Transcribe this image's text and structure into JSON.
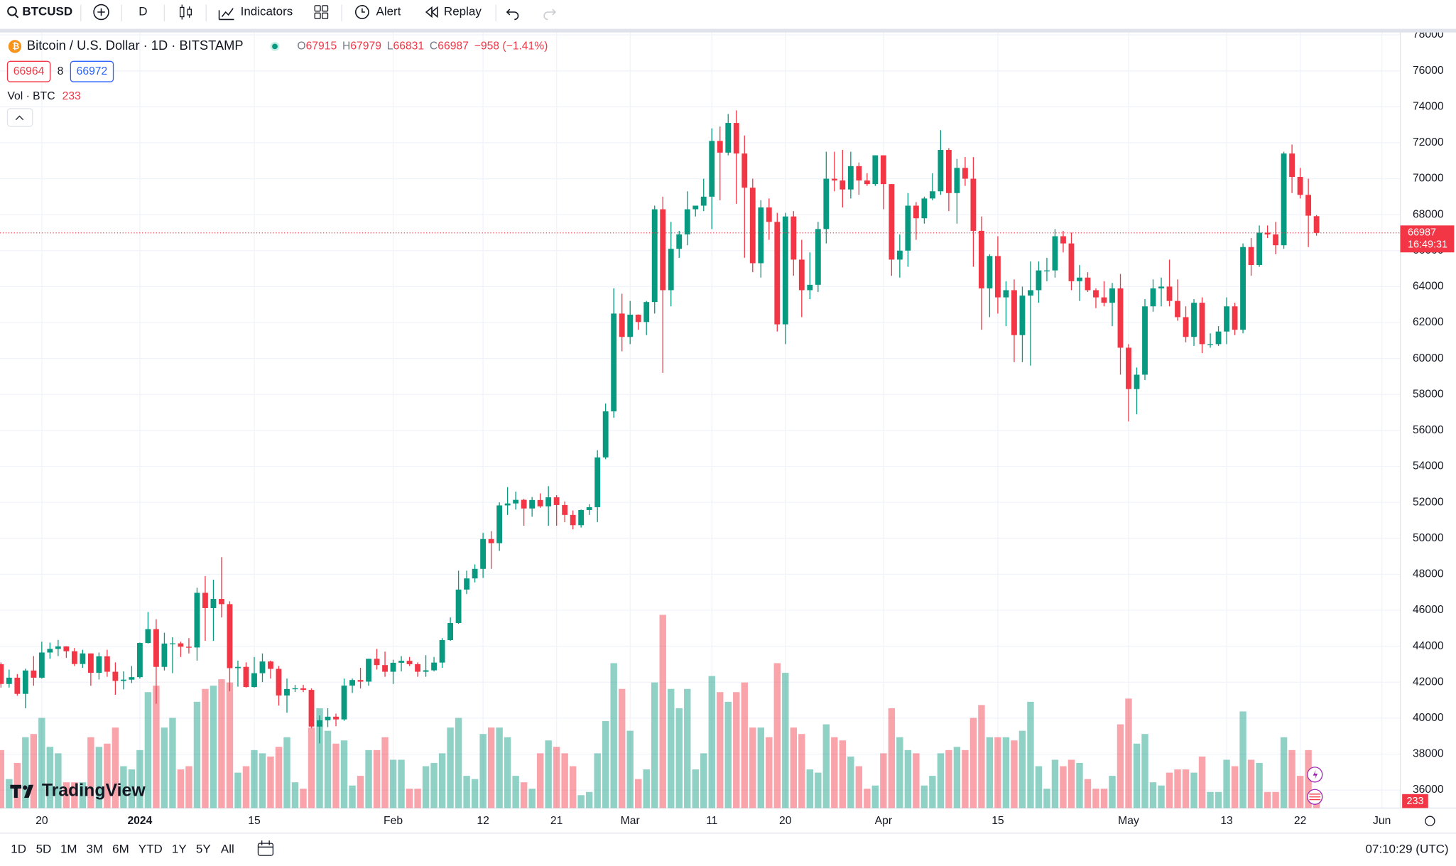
{
  "toolbar": {
    "symbol": "BTCUSD",
    "interval": "D",
    "indicators": "Indicators",
    "alert": "Alert",
    "replay": "Replay"
  },
  "legend": {
    "title": "Bitcoin / U.S. Dollar · 1D · BITSTAMP",
    "o": "O",
    "h": "H",
    "l": "L",
    "c": "C",
    "change": "−958 (−1.41%)",
    "bid": 66964,
    "spread": 8,
    "ask": 66972,
    "volume_title": "Vol · BTC"
  },
  "logo": "TradingView",
  "footer": {
    "ranges": [
      "1D",
      "5D",
      "1M",
      "3M",
      "6M",
      "YTD",
      "1Y",
      "5Y",
      "All"
    ],
    "clock": "07:10:29 (UTC)"
  },
  "chart_data": {
    "type": "candlestick",
    "up_color": "#089981",
    "down_color": "#f23645",
    "grid": true,
    "countdown": "16:49:31",
    "ylim": [
      35000,
      78130
    ],
    "yticks": [
      36000,
      38000,
      40000,
      42000,
      44000,
      46000,
      48000,
      50000,
      52000,
      54000,
      56000,
      58000,
      60000,
      62000,
      64000,
      66000,
      68000,
      70000,
      72000,
      74000,
      76000,
      78000
    ],
    "xticks": [
      {
        "value": "2023-12-20",
        "label": "20"
      },
      {
        "value": "2024-01-01",
        "label": "2024"
      },
      {
        "value": "2024-01-15",
        "label": "15"
      },
      {
        "value": "2024-02-01",
        "label": "Feb"
      },
      {
        "value": "2024-02-12",
        "label": "12"
      },
      {
        "value": "2024-02-21",
        "label": "21"
      },
      {
        "value": "2024-03-01",
        "label": "Mar"
      },
      {
        "value": "2024-03-11",
        "label": "11"
      },
      {
        "value": "2024-03-20",
        "label": "20"
      },
      {
        "value": "2024-04-01",
        "label": "Apr"
      },
      {
        "value": "2024-04-15",
        "label": "15"
      },
      {
        "value": "2024-05-01",
        "label": "May"
      },
      {
        "value": "2024-05-13",
        "label": "13"
      },
      {
        "value": "2024-05-22",
        "label": "22"
      },
      {
        "value": "2024-06-01",
        "label": "Jun"
      }
    ],
    "x": [
      "2023-12-15",
      "2023-12-16",
      "2023-12-17",
      "2023-12-18",
      "2023-12-19",
      "2023-12-20",
      "2023-12-21",
      "2023-12-22",
      "2023-12-23",
      "2023-12-24",
      "2023-12-25",
      "2023-12-26",
      "2023-12-27",
      "2023-12-28",
      "2023-12-29",
      "2023-12-30",
      "2023-12-31",
      "2024-01-01",
      "2024-01-02",
      "2024-01-03",
      "2024-01-04",
      "2024-01-05",
      "2024-01-06",
      "2024-01-07",
      "2024-01-08",
      "2024-01-09",
      "2024-01-10",
      "2024-01-11",
      "2024-01-12",
      "2024-01-13",
      "2024-01-14",
      "2024-01-15",
      "2024-01-16",
      "2024-01-17",
      "2024-01-18",
      "2024-01-19",
      "2024-01-20",
      "2024-01-21",
      "2024-01-22",
      "2024-01-23",
      "2024-01-24",
      "2024-01-25",
      "2024-01-26",
      "2024-01-27",
      "2024-01-28",
      "2024-01-29",
      "2024-01-30",
      "2024-01-31",
      "2024-02-01",
      "2024-02-02",
      "2024-02-03",
      "2024-02-04",
      "2024-02-05",
      "2024-02-06",
      "2024-02-07",
      "2024-02-08",
      "2024-02-09",
      "2024-02-10",
      "2024-02-11",
      "2024-02-12",
      "2024-02-13",
      "2024-02-14",
      "2024-02-15",
      "2024-02-16",
      "2024-02-17",
      "2024-02-18",
      "2024-02-19",
      "2024-02-20",
      "2024-02-21",
      "2024-02-22",
      "2024-02-23",
      "2024-02-24",
      "2024-02-25",
      "2024-02-26",
      "2024-02-27",
      "2024-02-28",
      "2024-02-29",
      "2024-03-01",
      "2024-03-02",
      "2024-03-03",
      "2024-03-04",
      "2024-03-05",
      "2024-03-06",
      "2024-03-07",
      "2024-03-08",
      "2024-03-09",
      "2024-03-10",
      "2024-03-11",
      "2024-03-12",
      "2024-03-13",
      "2024-03-14",
      "2024-03-15",
      "2024-03-16",
      "2024-03-17",
      "2024-03-18",
      "2024-03-19",
      "2024-03-20",
      "2024-03-21",
      "2024-03-22",
      "2024-03-23",
      "2024-03-24",
      "2024-03-25",
      "2024-03-26",
      "2024-03-27",
      "2024-03-28",
      "2024-03-29",
      "2024-03-30",
      "2024-03-31",
      "2024-04-01",
      "2024-04-02",
      "2024-04-03",
      "2024-04-04",
      "2024-04-05",
      "2024-04-06",
      "2024-04-07",
      "2024-04-08",
      "2024-04-09",
      "2024-04-10",
      "2024-04-11",
      "2024-04-12",
      "2024-04-13",
      "2024-04-14",
      "2024-04-15",
      "2024-04-16",
      "2024-04-17",
      "2024-04-18",
      "2024-04-19",
      "2024-04-20",
      "2024-04-21",
      "2024-04-22",
      "2024-04-23",
      "2024-04-24",
      "2024-04-25",
      "2024-04-26",
      "2024-04-27",
      "2024-04-28",
      "2024-04-29",
      "2024-04-30",
      "2024-05-01",
      "2024-05-02",
      "2024-05-03",
      "2024-05-04",
      "2024-05-05",
      "2024-05-06",
      "2024-05-07",
      "2024-05-08",
      "2024-05-09",
      "2024-05-10",
      "2024-05-11",
      "2024-05-12",
      "2024-05-13",
      "2024-05-14",
      "2024-05-15",
      "2024-05-16",
      "2024-05-17",
      "2024-05-18",
      "2024-05-19",
      "2024-05-20",
      "2024-05-21",
      "2024-05-22",
      "2024-05-23",
      "2024-05-24"
    ],
    "ohlc": [
      [
        43000,
        43100,
        41700,
        41900
      ],
      [
        41900,
        42700,
        41700,
        42250
      ],
      [
        42250,
        42450,
        41250,
        41350
      ],
      [
        41350,
        42750,
        40550,
        42650
      ],
      [
        42650,
        43450,
        41800,
        42250
      ],
      [
        42250,
        44250,
        42200,
        43650
      ],
      [
        43650,
        44200,
        43300,
        43850
      ],
      [
        43850,
        44350,
        43450,
        43990
      ],
      [
        43990,
        44000,
        43350,
        43720
      ],
      [
        43720,
        43900,
        42900,
        43010
      ],
      [
        43010,
        43800,
        42800,
        43600
      ],
      [
        43600,
        43600,
        41800,
        42520
      ],
      [
        42520,
        43650,
        42150,
        43440
      ],
      [
        43440,
        43800,
        42300,
        42580
      ],
      [
        42580,
        43100,
        41300,
        42070
      ],
      [
        42070,
        42600,
        41600,
        42140
      ],
      [
        42140,
        42900,
        41950,
        42280
      ],
      [
        42280,
        44200,
        42200,
        44180
      ],
      [
        44180,
        45900,
        44150,
        44950
      ],
      [
        44950,
        45500,
        40800,
        42850
      ],
      [
        42850,
        44750,
        42650,
        44150
      ],
      [
        44150,
        44500,
        42500,
        44160
      ],
      [
        44160,
        44250,
        43400,
        43970
      ],
      [
        43970,
        44450,
        43600,
        43930
      ],
      [
        43930,
        47250,
        43200,
        46970
      ],
      [
        46970,
        47900,
        44300,
        46120
      ],
      [
        46120,
        47700,
        44300,
        46630
      ],
      [
        46630,
        48950,
        45600,
        46340
      ],
      [
        46340,
        46500,
        41500,
        42780
      ],
      [
        42780,
        43200,
        41750,
        42850
      ],
      [
        42850,
        43100,
        41700,
        41730
      ],
      [
        41730,
        43400,
        41700,
        42500
      ],
      [
        42500,
        43600,
        42000,
        43150
      ],
      [
        43150,
        43200,
        42200,
        42740
      ],
      [
        42740,
        42900,
        40700,
        41260
      ],
      [
        41260,
        42200,
        40300,
        41620
      ],
      [
        41620,
        41850,
        41450,
        41660
      ],
      [
        41660,
        41850,
        41450,
        41570
      ],
      [
        41570,
        41650,
        39450,
        39530
      ],
      [
        39530,
        40150,
        38600,
        39880
      ],
      [
        39880,
        40550,
        39500,
        40080
      ],
      [
        40080,
        40250,
        39550,
        39930
      ],
      [
        39930,
        42200,
        39850,
        41810
      ],
      [
        41810,
        42200,
        41400,
        42120
      ],
      [
        42120,
        42800,
        41650,
        42030
      ],
      [
        42030,
        43300,
        41800,
        43300
      ],
      [
        43300,
        43850,
        42700,
        42950
      ],
      [
        42950,
        43700,
        42300,
        42580
      ],
      [
        42580,
        43250,
        41900,
        43080
      ],
      [
        43080,
        43450,
        42600,
        43190
      ],
      [
        43190,
        43400,
        42900,
        43000
      ],
      [
        43000,
        43100,
        42300,
        42580
      ],
      [
        42580,
        43500,
        42300,
        42660
      ],
      [
        42660,
        43400,
        42600,
        43090
      ],
      [
        43090,
        44450,
        42800,
        44340
      ],
      [
        44340,
        45600,
        44300,
        45290
      ],
      [
        45290,
        48200,
        45250,
        47150
      ],
      [
        47150,
        48200,
        46900,
        47770
      ],
      [
        47770,
        48550,
        47550,
        48300
      ],
      [
        48300,
        50300,
        47800,
        49960
      ],
      [
        49960,
        50400,
        48300,
        49730
      ],
      [
        49730,
        52000,
        49300,
        51830
      ],
      [
        51830,
        52850,
        51300,
        51940
      ],
      [
        51940,
        52600,
        51600,
        52140
      ],
      [
        52140,
        52200,
        50700,
        51660
      ],
      [
        51660,
        52300,
        51200,
        52130
      ],
      [
        52130,
        52500,
        51700,
        51780
      ],
      [
        51780,
        52900,
        50700,
        52280
      ],
      [
        52280,
        52400,
        50700,
        51850
      ],
      [
        51850,
        52050,
        50900,
        51300
      ],
      [
        51300,
        51550,
        50500,
        50730
      ],
      [
        50730,
        51600,
        50600,
        51570
      ],
      [
        51570,
        51900,
        51300,
        51730
      ],
      [
        51730,
        54900,
        50900,
        54500
      ],
      [
        54500,
        57500,
        54400,
        57060
      ],
      [
        57060,
        63900,
        56700,
        62500
      ],
      [
        62500,
        63600,
        60400,
        61200
      ],
      [
        61200,
        63200,
        60800,
        62440
      ],
      [
        62440,
        62450,
        61600,
        62030
      ],
      [
        62030,
        63200,
        61300,
        63140
      ],
      [
        63140,
        68500,
        62500,
        68300
      ],
      [
        68300,
        69000,
        59200,
        63800
      ],
      [
        63800,
        67600,
        62900,
        66100
      ],
      [
        66100,
        67100,
        65600,
        66900
      ],
      [
        66900,
        69300,
        66300,
        68300
      ],
      [
        68300,
        68500,
        67900,
        68500
      ],
      [
        68500,
        70000,
        68200,
        69000
      ],
      [
        69000,
        72800,
        67200,
        72100
      ],
      [
        72100,
        72900,
        68800,
        71450
      ],
      [
        71450,
        73600,
        71300,
        73100
      ],
      [
        73100,
        73800,
        68600,
        71400
      ],
      [
        71400,
        72400,
        65600,
        69500
      ],
      [
        69500,
        70000,
        64800,
        65300
      ],
      [
        65300,
        68800,
        64500,
        68400
      ],
      [
        68400,
        68900,
        66600,
        67600
      ],
      [
        67600,
        68100,
        61500,
        61900
      ],
      [
        61900,
        68100,
        60800,
        67900
      ],
      [
        67900,
        68200,
        64600,
        65500
      ],
      [
        65500,
        66600,
        62300,
        63800
      ],
      [
        63800,
        65900,
        63300,
        64100
      ],
      [
        64100,
        67600,
        63700,
        67200
      ],
      [
        67200,
        71500,
        66400,
        70000
      ],
      [
        70000,
        71500,
        69300,
        69900
      ],
      [
        69900,
        71600,
        68400,
        69400
      ],
      [
        69400,
        71500,
        68900,
        70700
      ],
      [
        70700,
        70900,
        69100,
        69900
      ],
      [
        69900,
        70300,
        69600,
        69700
      ],
      [
        69700,
        71300,
        69600,
        71300
      ],
      [
        71300,
        71300,
        68300,
        69700
      ],
      [
        69700,
        69700,
        64600,
        65500
      ],
      [
        65500,
        66900,
        64500,
        66000
      ],
      [
        66000,
        69200,
        65100,
        68500
      ],
      [
        68500,
        68700,
        66600,
        67800
      ],
      [
        67800,
        69000,
        67500,
        68900
      ],
      [
        68900,
        70300,
        68800,
        69300
      ],
      [
        69300,
        72700,
        69100,
        71600
      ],
      [
        71600,
        71700,
        68200,
        69200
      ],
      [
        69200,
        71100,
        67500,
        70600
      ],
      [
        70600,
        71200,
        69600,
        70000
      ],
      [
        70000,
        71200,
        65100,
        67100
      ],
      [
        67100,
        67900,
        61600,
        63900
      ],
      [
        63900,
        65800,
        62300,
        65700
      ],
      [
        65700,
        66800,
        62500,
        63400
      ],
      [
        63400,
        64300,
        61800,
        63800
      ],
      [
        63800,
        64400,
        59800,
        61300
      ],
      [
        61300,
        64000,
        59800,
        63500
      ],
      [
        63500,
        65400,
        59600,
        63800
      ],
      [
        63800,
        65400,
        63100,
        64900
      ],
      [
        64900,
        65600,
        64300,
        64900
      ],
      [
        64900,
        67200,
        64500,
        66800
      ],
      [
        66800,
        67100,
        65900,
        66400
      ],
      [
        66400,
        67000,
        63800,
        64300
      ],
      [
        64300,
        65200,
        63200,
        64500
      ],
      [
        64500,
        64800,
        63700,
        63800
      ],
      [
        63800,
        63900,
        62800,
        63400
      ],
      [
        63400,
        64300,
        62900,
        63100
      ],
      [
        63100,
        64200,
        61800,
        63900
      ],
      [
        63900,
        64700,
        59100,
        60600
      ],
      [
        60600,
        60800,
        56500,
        58300
      ],
      [
        58300,
        59500,
        56900,
        59100
      ],
      [
        59100,
        63300,
        58800,
        62900
      ],
      [
        62900,
        64400,
        62600,
        63900
      ],
      [
        63900,
        64500,
        62900,
        64000
      ],
      [
        64000,
        65500,
        62900,
        63200
      ],
      [
        63200,
        64400,
        62100,
        62300
      ],
      [
        62300,
        62900,
        60900,
        61200
      ],
      [
        61200,
        63300,
        60700,
        63100
      ],
      [
        63100,
        63400,
        60300,
        60800
      ],
      [
        60800,
        61400,
        60600,
        60800
      ],
      [
        60800,
        61800,
        60700,
        61500
      ],
      [
        61500,
        63400,
        60800,
        62900
      ],
      [
        62900,
        63100,
        61300,
        61600
      ],
      [
        61600,
        66400,
        61400,
        66200
      ],
      [
        66200,
        66700,
        64600,
        65200
      ],
      [
        65200,
        67400,
        65100,
        67000
      ],
      [
        67000,
        67400,
        66700,
        66900
      ],
      [
        66900,
        67600,
        65800,
        66300
      ],
      [
        66300,
        71500,
        66100,
        71400
      ],
      [
        71400,
        71900,
        69200,
        70100
      ],
      [
        70100,
        70600,
        68900,
        69100
      ],
      [
        69100,
        70000,
        66200,
        67945
      ],
      [
        67915,
        67979,
        66831,
        66987
      ]
    ],
    "volume": [
      1800,
      900,
      1400,
      2200,
      2300,
      2800,
      1900,
      1700,
      800,
      800,
      800,
      2200,
      1900,
      2000,
      2500,
      1300,
      1200,
      1800,
      3600,
      3800,
      2500,
      2800,
      1200,
      1300,
      3300,
      3700,
      3800,
      4000,
      3900,
      1100,
      1300,
      1800,
      1700,
      1600,
      1900,
      2200,
      800,
      600,
      2500,
      3100,
      2400,
      2000,
      2100,
      700,
      1000,
      1800,
      1800,
      2200,
      1500,
      1500,
      600,
      600,
      1300,
      1400,
      1700,
      2500,
      2800,
      1000,
      900,
      2300,
      2500,
      2500,
      2200,
      1000,
      800,
      600,
      1700,
      2100,
      1900,
      1700,
      1300,
      400,
      500,
      1700,
      2700,
      4500,
      3700,
      2400,
      900,
      1200,
      3900,
      6000,
      3700,
      3100,
      3700,
      1200,
      1700,
      4100,
      3600,
      3300,
      3600,
      3900,
      2500,
      2500,
      2200,
      4500,
      4200,
      2500,
      2300,
      1200,
      1100,
      2600,
      2200,
      2100,
      1600,
      1300,
      600,
      700,
      1700,
      3100,
      2200,
      1800,
      1700,
      700,
      1000,
      1700,
      1800,
      1900,
      1800,
      2800,
      3200,
      2200,
      2200,
      2200,
      2100,
      2400,
      3300,
      1300,
      600,
      1500,
      1300,
      1500,
      1400,
      900,
      600,
      600,
      1000,
      2600,
      3400,
      2000,
      2300,
      800,
      700,
      1100,
      1200,
      1200,
      1100,
      1600,
      500,
      500,
      1500,
      1300,
      3000,
      1500,
      1400,
      500,
      500,
      2200,
      1800,
      1000,
      1800,
      233
    ]
  }
}
